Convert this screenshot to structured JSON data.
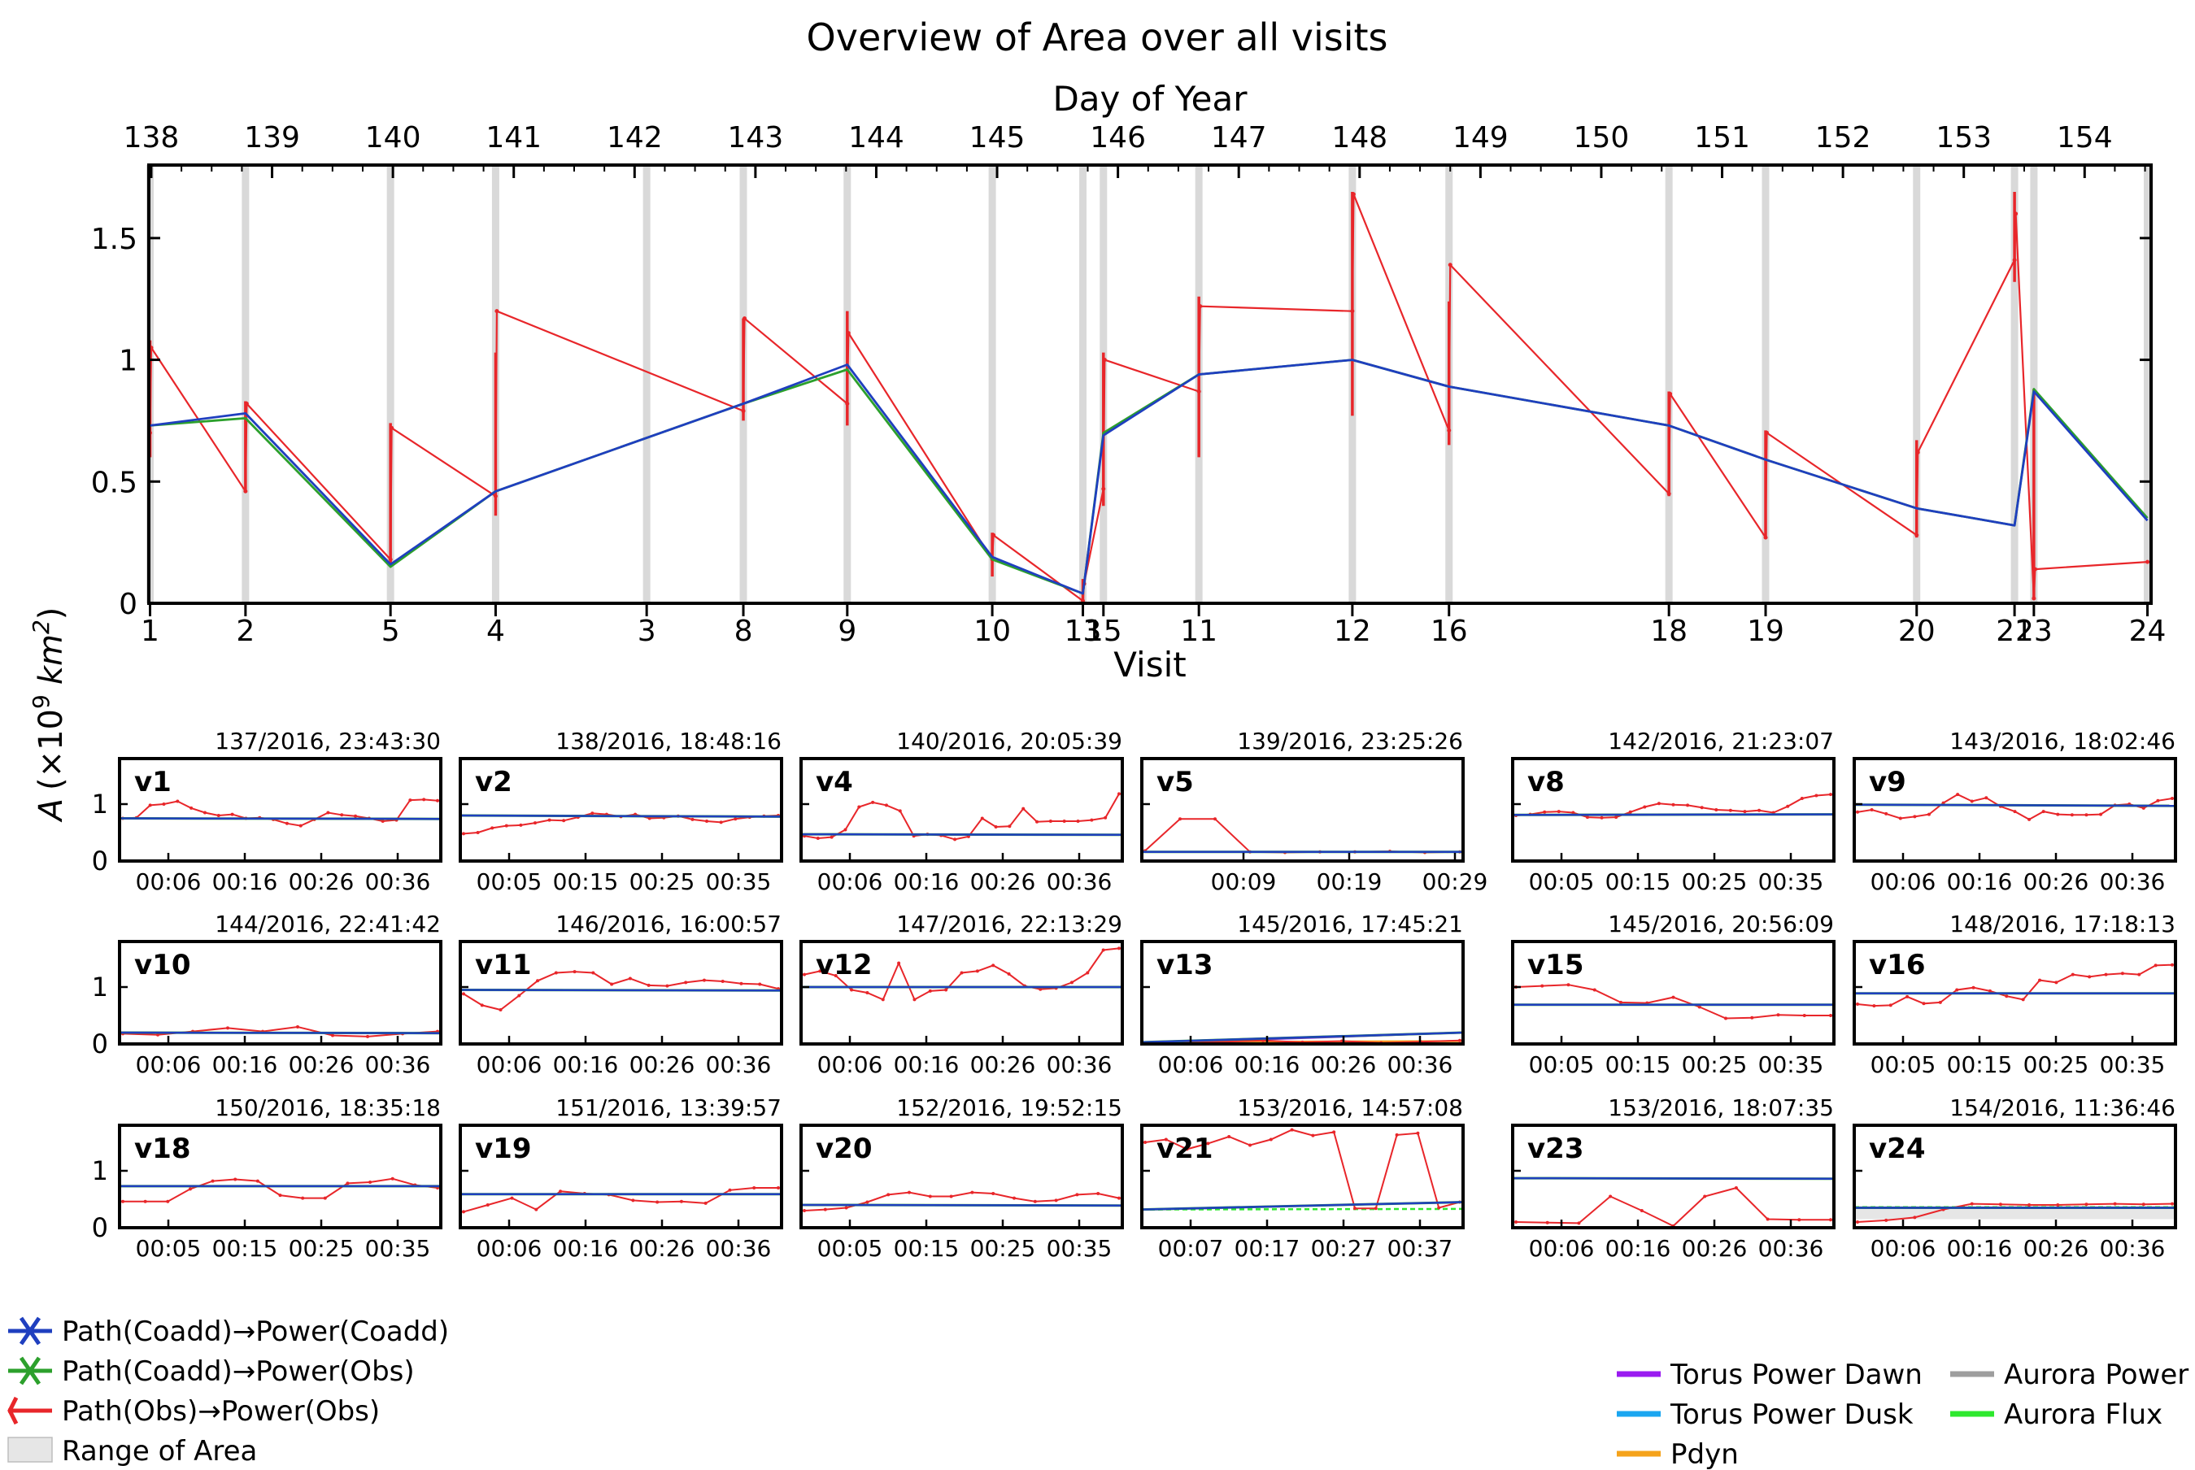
{
  "figure": {
    "title": "Overview of Area over all visits",
    "ylabel_main": "A",
    "ylabel_paren": "(×10",
    "ylabel_exp": "9",
    "ylabel_unit": "km",
    "ylabel_unit_exp": "2",
    "ylabel_close": ")"
  },
  "colors": {
    "coadd_coadd": "#1f3fbf",
    "coadd_obs": "#2ca02c",
    "obs_obs": "#e8262a",
    "visit_band": "#d9d9d9",
    "range_fill": "#e6e6e6",
    "torus_dawn": "#9a1bf0",
    "torus_dusk": "#1ba6f0",
    "pdyn": "#f5a31b",
    "aurora_power": "#9e9e9e",
    "aurora_flux": "#2ee82e"
  },
  "legend_left": [
    {
      "key": "coadd_coadd",
      "label": "Path(Coadd)→Power(Coadd)"
    },
    {
      "key": "coadd_obs",
      "label": "Path(Coadd)→Power(Obs)"
    },
    {
      "key": "obs_obs",
      "label": "Path(Obs)→Power(Obs)"
    },
    {
      "key": "range",
      "label": "Range of Area"
    }
  ],
  "legend_right": [
    {
      "key": "torus_dawn",
      "label": "Torus Power Dawn"
    },
    {
      "key": "aurora_power",
      "label": "Aurora Power"
    },
    {
      "key": "torus_dusk",
      "label": "Torus Power Dusk"
    },
    {
      "key": "aurora_flux",
      "label": "Aurora Flux"
    },
    {
      "key": "pdyn",
      "label": "Pdyn"
    }
  ],
  "chart_data": [
    {
      "type": "line",
      "title": "Overview of Area over all visits",
      "xlabel": "Visit",
      "xlabel_top": "Day of Year",
      "ylabel": "A (×10^9 km^2)",
      "xlim": [
        137.98,
        154.55
      ],
      "ylim": [
        0,
        1.8
      ],
      "y_ticks": [
        0,
        0.5,
        1,
        1.5
      ],
      "y_tick_labels": [
        "0",
        "0.5",
        "1",
        "1.5"
      ],
      "top_ticks": [
        138,
        139,
        140,
        141,
        142,
        143,
        144,
        145,
        146,
        147,
        148,
        149,
        150,
        151,
        152,
        153,
        154
      ],
      "visit_ticks": [
        {
          "label": "1",
          "x": 137.99
        },
        {
          "label": "2",
          "x": 138.78
        },
        {
          "label": "5",
          "x": 139.98
        },
        {
          "label": "4",
          "x": 140.85
        },
        {
          "label": "3",
          "x": 142.1
        },
        {
          "label": "8",
          "x": 142.9
        },
        {
          "label": "9",
          "x": 143.76
        },
        {
          "label": "10",
          "x": 144.96
        },
        {
          "label": "13",
          "x": 145.71
        },
        {
          "label": "15",
          "x": 145.88
        },
        {
          "label": "11",
          "x": 146.67
        },
        {
          "label": "12",
          "x": 147.94
        },
        {
          "label": "16",
          "x": 148.74
        },
        {
          "label": "18",
          "x": 150.56
        },
        {
          "label": "19",
          "x": 151.36
        },
        {
          "label": "20",
          "x": 152.61
        },
        {
          "label": "21",
          "x": 153.42
        },
        {
          "label": "23",
          "x": 153.58
        },
        {
          "label": "24",
          "x": 154.52
        }
      ],
      "series": [
        {
          "name": "Path(Coadd)→Power(Coadd)",
          "color_key": "coadd_coadd",
          "x": [
            137.99,
            138.78,
            139.98,
            140.85,
            142.9,
            143.76,
            144.96,
            145.71,
            145.88,
            146.67,
            147.94,
            148.74,
            150.56,
            151.36,
            152.61,
            153.42,
            153.58,
            154.52
          ],
          "y": [
            0.73,
            0.78,
            0.16,
            0.46,
            0.82,
            0.98,
            0.19,
            0.04,
            0.69,
            0.94,
            1.0,
            0.89,
            0.73,
            0.59,
            0.39,
            0.32,
            0.87,
            0.34
          ]
        },
        {
          "name": "Path(Coadd)→Power(Obs)",
          "color_key": "coadd_obs",
          "x": [
            137.99,
            138.78,
            139.98,
            140.85,
            142.9,
            143.76,
            144.96,
            145.71,
            145.88,
            146.67,
            147.94,
            148.74,
            150.56,
            151.36,
            152.61,
            153.42,
            153.58,
            154.52
          ],
          "y": [
            0.73,
            0.76,
            0.15,
            0.46,
            0.82,
            0.96,
            0.18,
            0.04,
            0.7,
            0.94,
            1.0,
            0.89,
            0.73,
            0.59,
            0.39,
            0.32,
            0.88,
            0.35
          ]
        },
        {
          "name": "Path(Obs)→Power(Obs)",
          "color_key": "obs_obs",
          "x": [
            137.99,
            138.0,
            138.78,
            138.79,
            139.98,
            139.99,
            140.85,
            140.86,
            142.9,
            142.91,
            143.76,
            143.77,
            144.96,
            144.97,
            145.71,
            145.72,
            145.88,
            145.89,
            146.67,
            146.68,
            147.94,
            147.95,
            148.74,
            148.75,
            150.56,
            150.57,
            151.36,
            151.37,
            152.61,
            152.62,
            153.42,
            153.43,
            153.58,
            153.59,
            154.52
          ],
          "y": [
            0.7,
            1.05,
            0.46,
            0.82,
            0.18,
            0.72,
            0.44,
            1.2,
            0.79,
            1.17,
            0.82,
            1.11,
            0.18,
            0.28,
            0.01,
            0.08,
            0.47,
            1.0,
            0.87,
            1.22,
            1.2,
            1.68,
            0.71,
            1.39,
            0.45,
            0.86,
            0.27,
            0.7,
            0.28,
            0.62,
            1.41,
            1.6,
            0.02,
            0.14,
            0.17
          ]
        }
      ],
      "ranges": [
        {
          "x": 137.99,
          "lo": 0.6,
          "hi": 1.08
        },
        {
          "x": 138.78,
          "lo": 0.46,
          "hi": 0.83
        },
        {
          "x": 139.98,
          "lo": 0.16,
          "hi": 0.74
        },
        {
          "x": 140.85,
          "lo": 0.36,
          "hi": 1.03
        },
        {
          "x": 142.9,
          "lo": 0.75,
          "hi": 1.17
        },
        {
          "x": 143.76,
          "lo": 0.73,
          "hi": 1.2
        },
        {
          "x": 144.96,
          "lo": 0.11,
          "hi": 0.29
        },
        {
          "x": 145.71,
          "lo": 0.0,
          "hi": 0.1
        },
        {
          "x": 145.88,
          "lo": 0.4,
          "hi": 1.03
        },
        {
          "x": 146.67,
          "lo": 0.6,
          "hi": 1.26
        },
        {
          "x": 147.94,
          "lo": 0.77,
          "hi": 1.69
        },
        {
          "x": 148.74,
          "lo": 0.65,
          "hi": 1.24
        },
        {
          "x": 150.56,
          "lo": 0.44,
          "hi": 0.87
        },
        {
          "x": 151.36,
          "lo": 0.27,
          "hi": 0.71
        },
        {
          "x": 152.61,
          "lo": 0.27,
          "hi": 0.67
        },
        {
          "x": 153.42,
          "lo": 1.32,
          "hi": 1.69
        },
        {
          "x": 153.58,
          "lo": 0.02,
          "hi": 0.88
        }
      ]
    },
    {
      "type": "line",
      "title": "Per-visit area",
      "ylim": [
        0,
        1.8
      ],
      "y_tick_labels": [
        "0",
        "1"
      ],
      "panels": [
        {
          "label": "v1",
          "stamp": "137/2016, 23:43:30",
          "ticks": [
            "00:06",
            "00:16",
            "00:26",
            "00:36"
          ],
          "coadd": [
            0.75,
            0.74
          ],
          "obs": [
            0.75,
            0.76,
            0.98,
            1.0,
            1.05,
            0.93,
            0.85,
            0.8,
            0.82,
            0.75,
            0.76,
            0.73,
            0.66,
            0.62,
            0.73,
            0.85,
            0.81,
            0.79,
            0.75,
            0.7,
            0.72,
            1.07,
            1.08,
            1.06
          ]
        },
        {
          "label": "v2",
          "stamp": "138/2016, 18:48:16",
          "ticks": [
            "00:05",
            "00:15",
            "00:25",
            "00:35"
          ],
          "coadd": [
            0.8,
            0.78
          ],
          "obs": [
            0.48,
            0.5,
            0.58,
            0.62,
            0.63,
            0.67,
            0.72,
            0.71,
            0.77,
            0.84,
            0.82,
            0.78,
            0.82,
            0.75,
            0.76,
            0.79,
            0.73,
            0.7,
            0.68,
            0.74,
            0.77,
            0.79,
            0.8
          ]
        },
        {
          "label": "v4",
          "stamp": "140/2016, 20:05:39",
          "ticks": [
            "00:06",
            "00:16",
            "00:26",
            "00:36"
          ],
          "coadd": [
            0.47,
            0.46
          ],
          "obs": [
            0.44,
            0.4,
            0.42,
            0.55,
            0.95,
            1.03,
            0.98,
            0.88,
            0.44,
            0.47,
            0.45,
            0.38,
            0.43,
            0.75,
            0.6,
            0.61,
            0.92,
            0.69,
            0.7,
            0.7,
            0.7,
            0.72,
            0.76,
            1.18
          ]
        },
        {
          "label": "v5",
          "stamp": "139/2016, 23:25:26",
          "ticks": [
            "00:09",
            "00:19",
            "00:29"
          ],
          "coadd": [
            0.16,
            0.16
          ],
          "obs": [
            0.18,
            0.74,
            0.74,
            0.16,
            0.15,
            0.16,
            0.16,
            0.17,
            0.15,
            0.16
          ]
        },
        {
          "label": "v8",
          "stamp": "142/2016, 21:23:07",
          "ticks": [
            "00:05",
            "00:15",
            "00:25",
            "00:35"
          ],
          "coadd": [
            0.81,
            0.82
          ],
          "obs": [
            0.8,
            0.82,
            0.86,
            0.87,
            0.85,
            0.77,
            0.76,
            0.77,
            0.86,
            0.95,
            1.01,
            0.99,
            0.98,
            0.94,
            0.9,
            0.89,
            0.87,
            0.89,
            0.85,
            0.96,
            1.1,
            1.15,
            1.17
          ]
        },
        {
          "label": "v9",
          "stamp": "143/2016, 18:02:46",
          "ticks": [
            "00:06",
            "00:16",
            "00:26",
            "00:36"
          ],
          "coadd": [
            0.99,
            0.97
          ],
          "obs": [
            0.86,
            0.9,
            0.83,
            0.75,
            0.78,
            0.82,
            1.02,
            1.17,
            1.05,
            1.11,
            0.96,
            0.87,
            0.73,
            0.87,
            0.82,
            0.81,
            0.81,
            0.82,
            0.98,
            1.0,
            0.93,
            1.06,
            1.1
          ]
        },
        {
          "label": "v10",
          "stamp": "144/2016, 22:41:42",
          "ticks": [
            "00:06",
            "00:16",
            "00:26",
            "00:36"
          ],
          "coadd": [
            0.2,
            0.19
          ],
          "obs": [
            0.18,
            0.16,
            0.22,
            0.28,
            0.22,
            0.3,
            0.15,
            0.13,
            0.18,
            0.22
          ]
        },
        {
          "label": "v11",
          "stamp": "146/2016, 16:00:57",
          "ticks": [
            "00:06",
            "00:16",
            "00:26",
            "00:36"
          ],
          "coadd": [
            0.95,
            0.94
          ],
          "obs": [
            0.88,
            0.68,
            0.6,
            0.85,
            1.11,
            1.25,
            1.27,
            1.25,
            1.05,
            1.15,
            1.03,
            1.02,
            1.08,
            1.12,
            1.1,
            1.06,
            1.05,
            0.97
          ]
        },
        {
          "label": "v12",
          "stamp": "147/2016, 22:13:29",
          "ticks": [
            "00:06",
            "00:16",
            "00:26",
            "00:36"
          ],
          "coadd": [
            1.0,
            1.0
          ],
          "obs": [
            1.22,
            1.28,
            1.2,
            0.95,
            0.9,
            0.78,
            1.42,
            0.78,
            0.93,
            0.95,
            1.25,
            1.28,
            1.38,
            1.23,
            1.02,
            0.96,
            0.98,
            1.08,
            1.25,
            1.65,
            1.68
          ]
        },
        {
          "label": "v13",
          "stamp": "145/2016, 17:45:21",
          "ticks": [
            "00:06",
            "00:16",
            "00:26",
            "00:36"
          ],
          "coadd": [
            0.03,
            0.2
          ],
          "obs": [
            0.0,
            0.02,
            0.04,
            0.06,
            0.03,
            0.05,
            0.02,
            0.04,
            0.06
          ]
        },
        {
          "label": "v15",
          "stamp": "145/2016, 20:56:09",
          "ticks": [
            "00:05",
            "00:15",
            "00:25",
            "00:35"
          ],
          "coadd": [
            0.69,
            0.69
          ],
          "obs": [
            1.0,
            1.02,
            1.04,
            0.95,
            0.73,
            0.72,
            0.82,
            0.65,
            0.45,
            0.46,
            0.51,
            0.5,
            0.5
          ]
        },
        {
          "label": "v16",
          "stamp": "148/2016, 17:18:13",
          "ticks": [
            "00:05",
            "00:15",
            "00:25",
            "00:35"
          ],
          "coadd": [
            0.89,
            0.89
          ],
          "obs": [
            0.7,
            0.67,
            0.68,
            0.83,
            0.71,
            0.73,
            0.95,
            0.99,
            0.93,
            0.84,
            0.78,
            1.12,
            1.08,
            1.22,
            1.18,
            1.22,
            1.24,
            1.22,
            1.38,
            1.39
          ]
        },
        {
          "label": "v18",
          "stamp": "150/2016, 18:35:18",
          "ticks": [
            "00:05",
            "00:15",
            "00:25",
            "00:35"
          ],
          "coadd": [
            0.73,
            0.73
          ],
          "obs": [
            0.46,
            0.46,
            0.46,
            0.68,
            0.82,
            0.85,
            0.82,
            0.57,
            0.52,
            0.52,
            0.78,
            0.8,
            0.86,
            0.75,
            0.7
          ]
        },
        {
          "label": "v19",
          "stamp": "151/2016, 13:39:57",
          "ticks": [
            "00:06",
            "00:16",
            "00:26",
            "00:36"
          ],
          "coadd": [
            0.59,
            0.59
          ],
          "obs": [
            0.28,
            0.4,
            0.52,
            0.32,
            0.64,
            0.6,
            0.58,
            0.48,
            0.45,
            0.46,
            0.43,
            0.66,
            0.7,
            0.7
          ]
        },
        {
          "label": "v20",
          "stamp": "152/2016, 19:52:15",
          "ticks": [
            "00:05",
            "00:15",
            "00:25",
            "00:35"
          ],
          "coadd": [
            0.4,
            0.39
          ],
          "obs": [
            0.3,
            0.32,
            0.35,
            0.45,
            0.58,
            0.62,
            0.55,
            0.55,
            0.62,
            0.6,
            0.52,
            0.46,
            0.48,
            0.58,
            0.6,
            0.52
          ]
        },
        {
          "label": "v21",
          "stamp": "153/2016, 14:57:08",
          "ticks": [
            "00:07",
            "00:17",
            "00:27",
            "00:37"
          ],
          "coadd": [
            0.32,
            0.45
          ],
          "obs": [
            1.5,
            1.55,
            1.38,
            1.48,
            1.6,
            1.45,
            1.55,
            1.72,
            1.62,
            1.68,
            0.34,
            0.34,
            1.63,
            1.66,
            0.35,
            0.45
          ]
        },
        {
          "label": "v23",
          "stamp": "153/2016, 18:07:35",
          "ticks": [
            "00:06",
            "00:16",
            "00:26",
            "00:36"
          ],
          "coadd": [
            0.87,
            0.86
          ],
          "obs": [
            0.1,
            0.09,
            0.08,
            0.55,
            0.3,
            0.03,
            0.55,
            0.7,
            0.15,
            0.14,
            0.14
          ]
        },
        {
          "label": "v24",
          "stamp": "154/2016, 11:36:46",
          "ticks": [
            "00:06",
            "00:16",
            "00:26",
            "00:36"
          ],
          "coadd": [
            0.35,
            0.35
          ],
          "obs": [
            0.1,
            0.13,
            0.18,
            0.32,
            0.42,
            0.41,
            0.4,
            0.4,
            0.41,
            0.42,
            0.41,
            0.42
          ]
        }
      ]
    }
  ]
}
